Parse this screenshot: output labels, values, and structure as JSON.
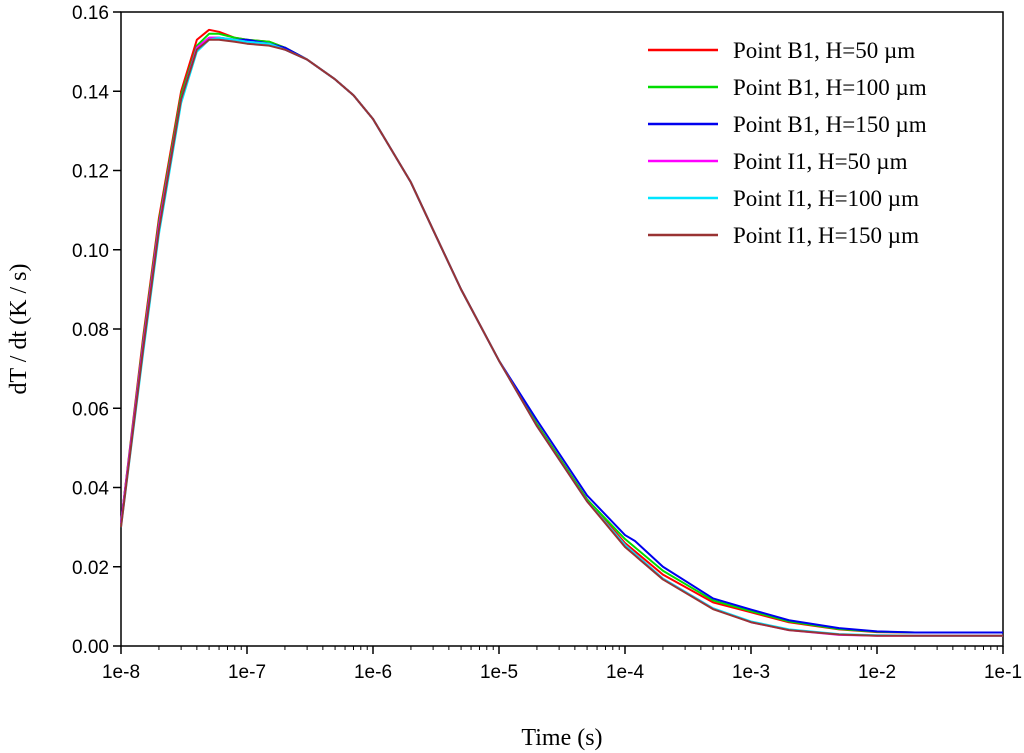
{
  "chart_data": {
    "type": "line",
    "title": "",
    "xlabel": "Time (s)",
    "ylabel": "dT / dt (K / s)",
    "xscale": "log",
    "xlim": [
      1e-08,
      0.1
    ],
    "ylim": [
      0,
      0.16
    ],
    "x_ticks": [
      1e-08,
      1e-07,
      1e-06,
      1e-05,
      0.0001,
      0.001,
      0.01,
      0.1
    ],
    "x_tick_labels": [
      "1e-8",
      "1e-7",
      "1e-6",
      "1e-5",
      "1e-4",
      "1e-3",
      "1e-2",
      "1e-1"
    ],
    "y_ticks": [
      0,
      0.02,
      0.04,
      0.06,
      0.08,
      0.1,
      0.12,
      0.14,
      0.16
    ],
    "y_tick_labels": [
      "0.00",
      "0.02",
      "0.04",
      "0.06",
      "0.08",
      "0.10",
      "0.12",
      "0.14",
      "0.16"
    ],
    "legend_position": "top-right",
    "grid": false,
    "series": [
      {
        "name": "Point B1, H=50 µm",
        "color": "#ff0000",
        "x": [
          1e-08,
          1.5e-08,
          2e-08,
          3e-08,
          4e-08,
          5e-08,
          6e-08,
          8e-08,
          1e-07,
          1.5e-07,
          2e-07,
          3e-07,
          5e-07,
          7e-07,
          1e-06,
          2e-06,
          3e-06,
          5e-06,
          1e-05,
          2e-05,
          5e-05,
          0.0001,
          0.0002,
          0.0005,
          0.001,
          0.002,
          0.005,
          0.01,
          0.02,
          0.05,
          0.1
        ],
        "y": [
          0.031,
          0.078,
          0.108,
          0.14,
          0.153,
          0.1555,
          0.155,
          0.1535,
          0.153,
          0.1525,
          0.151,
          0.148,
          0.143,
          0.139,
          0.133,
          0.117,
          0.105,
          0.09,
          0.072,
          0.056,
          0.037,
          0.026,
          0.018,
          0.011,
          0.0085,
          0.006,
          0.0042,
          0.0035,
          0.0034,
          0.0034,
          0.0034
        ]
      },
      {
        "name": "Point B1, H=100 µm",
        "color": "#00dd00",
        "x": [
          1e-08,
          1.5e-08,
          2e-08,
          3e-08,
          4e-08,
          5e-08,
          6e-08,
          8e-08,
          1e-07,
          1.5e-07,
          2e-07,
          3e-07,
          5e-07,
          7e-07,
          1e-06,
          2e-06,
          3e-06,
          5e-06,
          1e-05,
          2e-05,
          5e-05,
          0.0001,
          0.0002,
          0.0005,
          0.001,
          0.002,
          0.005,
          0.01,
          0.02,
          0.05,
          0.1
        ],
        "y": [
          0.031,
          0.077,
          0.107,
          0.139,
          0.1515,
          0.1545,
          0.1545,
          0.1535,
          0.153,
          0.1525,
          0.151,
          0.148,
          0.143,
          0.139,
          0.133,
          0.117,
          0.105,
          0.09,
          0.072,
          0.056,
          0.037,
          0.027,
          0.019,
          0.0115,
          0.0088,
          0.0062,
          0.0043,
          0.0036,
          0.0034,
          0.0034,
          0.0034
        ]
      },
      {
        "name": "Point B1, H=150 µm",
        "color": "#0000ee",
        "x": [
          1e-08,
          1.5e-08,
          2e-08,
          3e-08,
          4e-08,
          5e-08,
          6e-08,
          8e-08,
          1e-07,
          1.5e-07,
          2e-07,
          3e-07,
          5e-07,
          7e-07,
          1e-06,
          2e-06,
          3e-06,
          5e-06,
          1e-05,
          2e-05,
          5e-05,
          0.0001,
          0.00012,
          0.0002,
          0.0005,
          0.001,
          0.002,
          0.005,
          0.01,
          0.02,
          0.05,
          0.1
        ],
        "y": [
          0.031,
          0.076,
          0.106,
          0.138,
          0.151,
          0.1535,
          0.1535,
          0.153,
          0.153,
          0.152,
          0.151,
          0.148,
          0.143,
          0.139,
          0.133,
          0.117,
          0.105,
          0.09,
          0.072,
          0.057,
          0.038,
          0.028,
          0.0265,
          0.02,
          0.012,
          0.0092,
          0.0065,
          0.0045,
          0.0037,
          0.0034,
          0.0034,
          0.0034
        ]
      },
      {
        "name": "Point I1, H=50 µm",
        "color": "#ff00ff",
        "x": [
          1e-08,
          1.5e-08,
          2e-08,
          3e-08,
          4e-08,
          5e-08,
          6e-08,
          8e-08,
          1e-07,
          1.5e-07,
          2e-07,
          3e-07,
          5e-07,
          7e-07,
          1e-06,
          2e-06,
          3e-06,
          5e-06,
          1e-05,
          2e-05,
          5e-05,
          0.0001,
          0.0002,
          0.0005,
          0.001,
          0.002,
          0.005,
          0.01,
          0.02,
          0.05,
          0.1
        ],
        "y": [
          0.031,
          0.076,
          0.106,
          0.138,
          0.151,
          0.1535,
          0.1535,
          0.153,
          0.1525,
          0.152,
          0.1505,
          0.148,
          0.143,
          0.139,
          0.133,
          0.117,
          0.105,
          0.09,
          0.072,
          0.0555,
          0.0365,
          0.0255,
          0.017,
          0.0095,
          0.006,
          0.004,
          0.0028,
          0.0026,
          0.0026,
          0.0026,
          0.0026
        ]
      },
      {
        "name": "Point I1, H=100 µm",
        "color": "#00e5ff",
        "x": [
          1e-08,
          1.5e-08,
          2e-08,
          3e-08,
          4e-08,
          5e-08,
          6e-08,
          8e-08,
          1e-07,
          1.5e-07,
          2e-07,
          3e-07,
          5e-07,
          7e-07,
          1e-06,
          2e-06,
          3e-06,
          5e-06,
          1e-05,
          2e-05,
          5e-05,
          0.0001,
          0.0002,
          0.0005,
          0.001,
          0.002,
          0.005,
          0.01,
          0.02,
          0.05,
          0.1
        ],
        "y": [
          0.03,
          0.074,
          0.104,
          0.137,
          0.15,
          0.153,
          0.1535,
          0.153,
          0.1525,
          0.152,
          0.1505,
          0.148,
          0.143,
          0.139,
          0.133,
          0.117,
          0.105,
          0.09,
          0.072,
          0.0555,
          0.0365,
          0.0255,
          0.017,
          0.0095,
          0.0062,
          0.0042,
          0.003,
          0.0027,
          0.0026,
          0.0026,
          0.0026
        ]
      },
      {
        "name": "Point I1, H=150 µm",
        "color": "#993333",
        "x": [
          1e-08,
          1.5e-08,
          2e-08,
          3e-08,
          4e-08,
          5e-08,
          6e-08,
          8e-08,
          1e-07,
          1.5e-07,
          2e-07,
          3e-07,
          5e-07,
          7e-07,
          1e-06,
          2e-06,
          3e-06,
          5e-06,
          1e-05,
          2e-05,
          5e-05,
          0.0001,
          0.0002,
          0.0005,
          0.001,
          0.002,
          0.005,
          0.01,
          0.02,
          0.05,
          0.1
        ],
        "y": [
          0.03,
          0.075,
          0.105,
          0.138,
          0.1505,
          0.153,
          0.153,
          0.1525,
          0.152,
          0.1515,
          0.1505,
          0.148,
          0.143,
          0.139,
          0.133,
          0.117,
          0.105,
          0.09,
          0.072,
          0.0555,
          0.0365,
          0.025,
          0.0168,
          0.0093,
          0.006,
          0.004,
          0.0029,
          0.0026,
          0.0026,
          0.0026,
          0.0026
        ]
      }
    ]
  }
}
